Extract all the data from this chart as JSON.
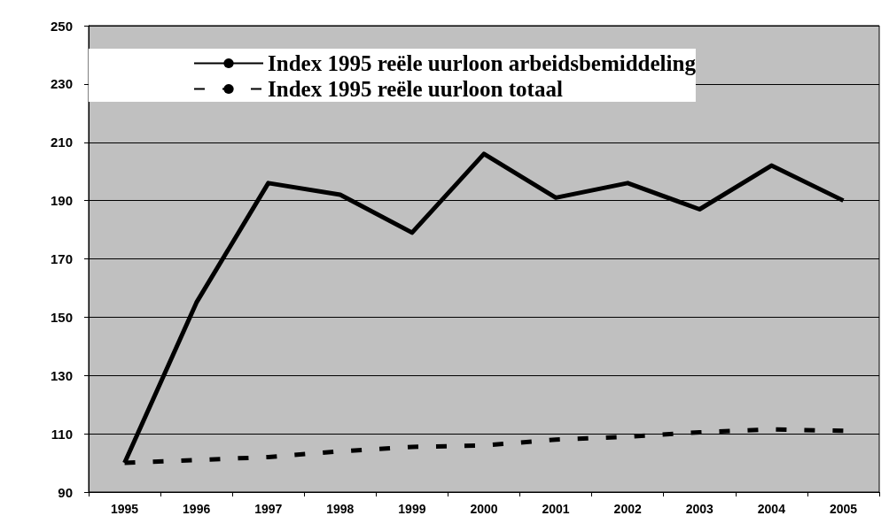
{
  "chart_data": {
    "type": "line",
    "categories": [
      "1995",
      "1996",
      "1997",
      "1998",
      "1999",
      "2000",
      "2001",
      "2002",
      "2003",
      "2004",
      "2005"
    ],
    "series": [
      {
        "name": "Index 1995 reële uurloon arbeidsbemiddeling",
        "color": "#000000",
        "line_style": "solid",
        "values": [
          100,
          155,
          196,
          192,
          179,
          206,
          191,
          196,
          187,
          202,
          190
        ]
      },
      {
        "name": "Index 1995 reële uurloon totaal",
        "color": "#000000",
        "line_style": "dashed",
        "values": [
          100,
          101,
          102,
          104,
          105.5,
          106,
          108,
          109,
          110.5,
          111.5,
          111
        ]
      }
    ],
    "ylim": [
      90,
      250
    ],
    "yticks": [
      90,
      110,
      130,
      150,
      170,
      190,
      210,
      230,
      250
    ],
    "grid": "y",
    "legend": "top",
    "marker": "none"
  }
}
